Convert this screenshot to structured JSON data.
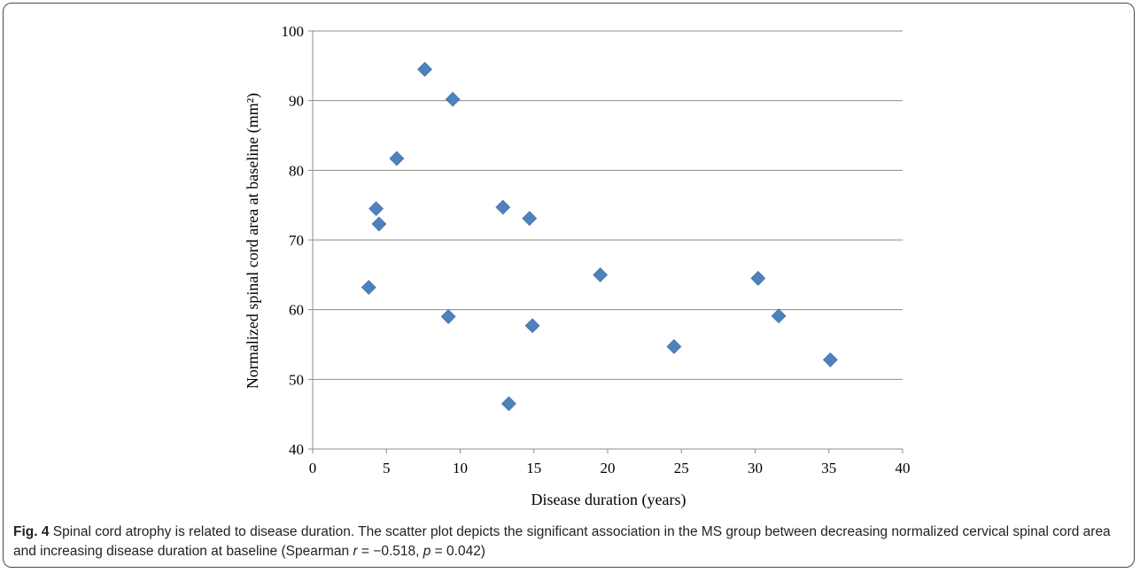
{
  "figure": {
    "label": "Fig. 4",
    "title": "Spinal cord atrophy is related to disease duration.",
    "caption_main": "The scatter plot depicts the significant association in the MS group between decreasing normalized cervical spinal cord area and increasing disease duration at baseline (Spearman ",
    "stat_r_symbol": "r",
    "stat_r_value": " = −0.518, ",
    "stat_p_symbol": "p",
    "stat_p_value": " = 0.042)"
  },
  "chart_data": {
    "type": "scatter",
    "title": "",
    "xlabel": "Disease duration (years)",
    "ylabel": "Normalized spinal cord area at baseline (mm²)",
    "xlim": [
      0,
      40
    ],
    "ylim": [
      40,
      100
    ],
    "xticks": [
      0,
      5,
      10,
      15,
      20,
      25,
      30,
      35,
      40
    ],
    "yticks": [
      40,
      50,
      60,
      70,
      80,
      90,
      100
    ],
    "grid": "horizontal",
    "marker": "diamond",
    "color": "#4F81BD",
    "points": [
      {
        "x": 3.8,
        "y": 63.2
      },
      {
        "x": 4.3,
        "y": 74.5
      },
      {
        "x": 4.5,
        "y": 72.3
      },
      {
        "x": 5.7,
        "y": 81.7
      },
      {
        "x": 7.6,
        "y": 94.5
      },
      {
        "x": 9.2,
        "y": 59.0
      },
      {
        "x": 9.5,
        "y": 90.2
      },
      {
        "x": 12.9,
        "y": 74.7
      },
      {
        "x": 13.3,
        "y": 46.5
      },
      {
        "x": 14.7,
        "y": 73.1
      },
      {
        "x": 14.9,
        "y": 57.7
      },
      {
        "x": 19.5,
        "y": 65.0
      },
      {
        "x": 24.5,
        "y": 54.7
      },
      {
        "x": 30.2,
        "y": 64.5
      },
      {
        "x": 31.6,
        "y": 59.1
      },
      {
        "x": 35.1,
        "y": 52.8
      }
    ]
  }
}
